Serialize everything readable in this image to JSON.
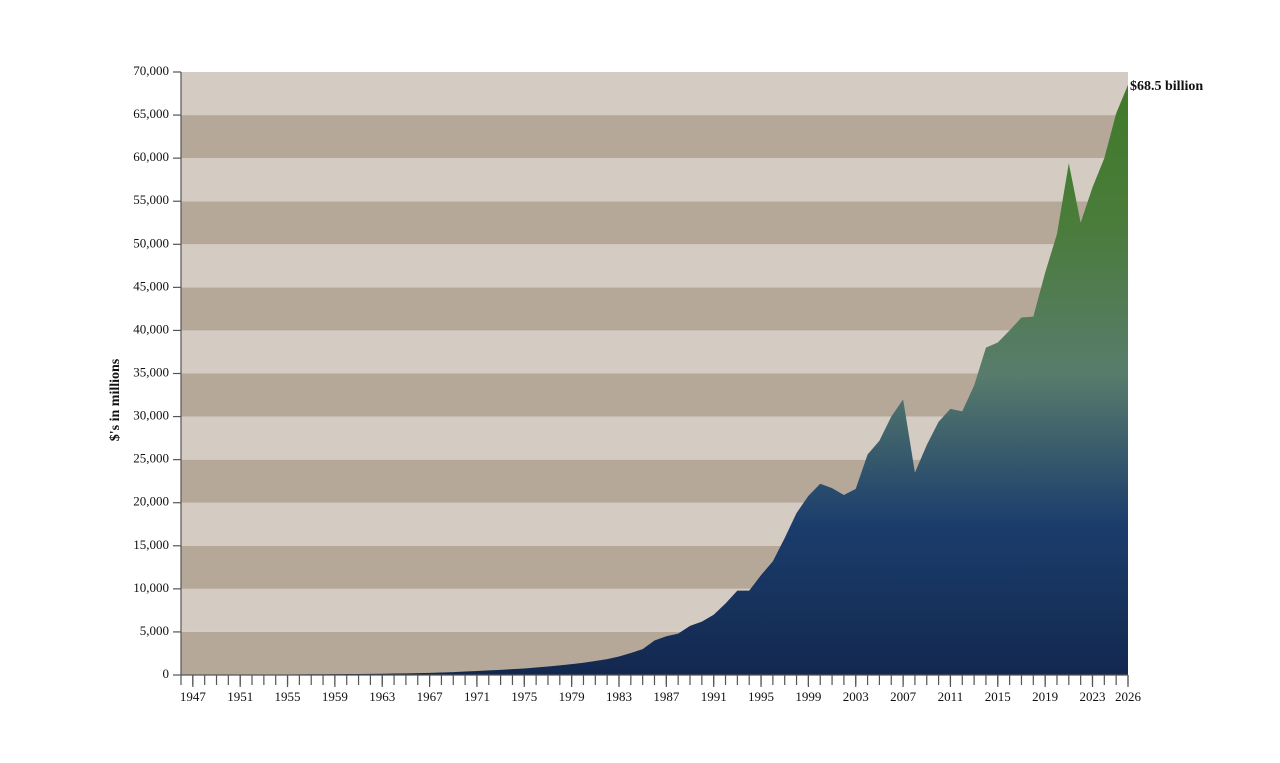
{
  "chart_data": {
    "type": "area",
    "ylabel": "$'s in millions",
    "annotation": "$68.5 billion",
    "x": [
      1947,
      1948,
      1949,
      1950,
      1951,
      1952,
      1953,
      1954,
      1955,
      1956,
      1957,
      1958,
      1959,
      1960,
      1961,
      1962,
      1963,
      1964,
      1965,
      1966,
      1967,
      1968,
      1969,
      1970,
      1971,
      1972,
      1973,
      1974,
      1975,
      1976,
      1977,
      1978,
      1979,
      1980,
      1981,
      1982,
      1983,
      1984,
      1985,
      1986,
      1987,
      1988,
      1989,
      1990,
      1991,
      1992,
      1993,
      1994,
      1995,
      1996,
      1997,
      1998,
      1999,
      2000,
      2001,
      2002,
      2003,
      2004,
      2005,
      2006,
      2007,
      2008,
      2009,
      2010,
      2011,
      2012,
      2013,
      2014,
      2015,
      2016,
      2017,
      2018,
      2019,
      2020,
      2021,
      2022,
      2023,
      2024,
      2025,
      2026
    ],
    "values": [
      20,
      25,
      30,
      35,
      40,
      45,
      50,
      55,
      60,
      70,
      80,
      90,
      100,
      110,
      120,
      135,
      150,
      170,
      190,
      220,
      250,
      290,
      340,
      400,
      460,
      530,
      600,
      680,
      760,
      870,
      990,
      1120,
      1260,
      1420,
      1620,
      1850,
      2150,
      2550,
      3000,
      4000,
      4500,
      4800,
      5700,
      6200,
      7000,
      8300,
      9800,
      9800,
      11600,
      13200,
      15900,
      18800,
      20800,
      22200,
      21700,
      20900,
      21600,
      25600,
      27200,
      30000,
      32000,
      23500,
      26700,
      29400,
      30900,
      30600,
      33600,
      38000,
      38600,
      40000,
      41500,
      41600,
      46700,
      51200,
      59400,
      52500,
      56600,
      60000,
      65200,
      68500
    ],
    "xlim": [
      1946,
      2026
    ],
    "xticks": [
      1947,
      1951,
      1955,
      1959,
      1963,
      1967,
      1971,
      1975,
      1979,
      1983,
      1987,
      1991,
      1995,
      1999,
      2003,
      2007,
      2011,
      2015,
      2019,
      2023,
      2026
    ],
    "minor_xticks": true,
    "ylim": [
      0,
      70000
    ],
    "yticks": [
      0,
      {
        "value": 5000,
        "label": "5,000"
      },
      {
        "value": 10000,
        "label": "10,000"
      },
      {
        "value": 15000,
        "label": "15,000"
      },
      {
        "value": 20000,
        "label": "20,000"
      },
      {
        "value": 25000,
        "label": "25,000"
      },
      {
        "value": 30000,
        "label": "30,000"
      },
      {
        "value": 35000,
        "label": "35,000"
      },
      {
        "value": 40000,
        "label": "40,000"
      },
      {
        "value": 45000,
        "label": "45,000"
      },
      {
        "value": 50000,
        "label": "50,000"
      },
      {
        "value": 55000,
        "label": "55,000"
      },
      {
        "value": 60000,
        "label": "60,000"
      },
      {
        "value": 65000,
        "label": "65,000"
      },
      {
        "value": 70000,
        "label": "70,000"
      }
    ],
    "band_colors": [
      "#b5a898",
      "#d4cbc2"
    ],
    "gradient_colors": [
      "#13284f",
      "#1b3d6c",
      "#587c6c",
      "#4a7c3a",
      "#3e7a28"
    ]
  }
}
